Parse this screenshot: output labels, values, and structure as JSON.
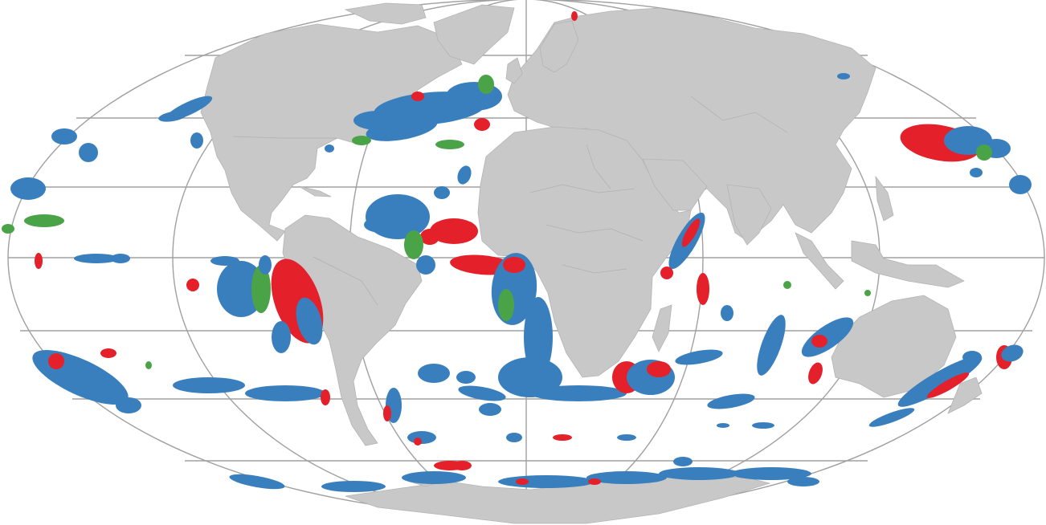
{
  "map": {
    "projection": "mollweide",
    "background_color": "#ffffff",
    "land_color": "#c8c8c8",
    "graticule_color": "#a0a0a0",
    "category_colors": {
      "blue": "#3a7fbd",
      "red": "#e4202a",
      "green": "#4aa447"
    },
    "labels_visible": false
  }
}
